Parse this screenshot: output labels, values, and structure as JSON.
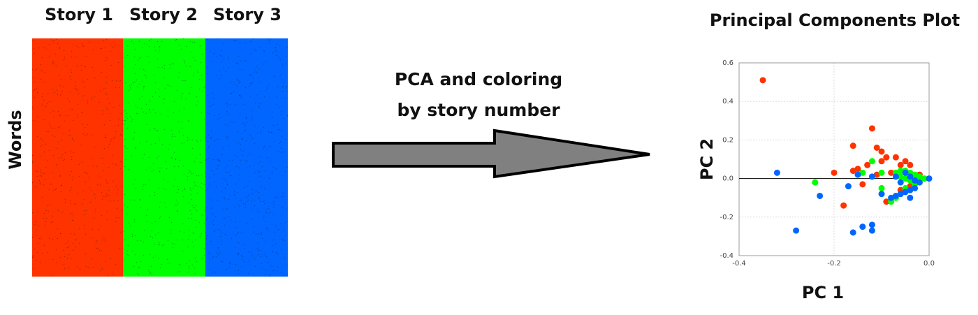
{
  "matrix": {
    "stories": [
      {
        "label": "Story 1",
        "color": "#ff3300"
      },
      {
        "label": "Story 2",
        "color": "#00ff00"
      },
      {
        "label": "Story 3",
        "color": "#0066ff"
      }
    ],
    "row_label": "Words"
  },
  "arrow": {
    "caption_line1": "PCA and coloring",
    "caption_line2": "by story number",
    "fill": "#808080"
  },
  "chart_data": {
    "type": "scatter",
    "title": "Principal Components Plot",
    "xlabel": "PC 1",
    "ylabel": "PC 2",
    "xlim": [
      -0.4,
      0.0
    ],
    "ylim": [
      -0.4,
      0.6
    ],
    "xticks": [
      "-0.4",
      "-0.2",
      "0.0"
    ],
    "yticks": [
      "-0.4",
      "-0.2",
      "0.0",
      "0.2",
      "0.4",
      "0.6"
    ],
    "grid": true,
    "series": [
      {
        "color": "#ff3300",
        "points": [
          [
            -0.35,
            0.51
          ],
          [
            -0.12,
            0.26
          ],
          [
            -0.16,
            0.17
          ],
          [
            -0.11,
            0.16
          ],
          [
            -0.1,
            0.14
          ],
          [
            -0.09,
            0.11
          ],
          [
            -0.07,
            0.11
          ],
          [
            -0.05,
            0.09
          ],
          [
            -0.04,
            0.07
          ],
          [
            -0.06,
            0.07
          ],
          [
            -0.1,
            0.09
          ],
          [
            -0.13,
            0.07
          ],
          [
            -0.15,
            0.05
          ],
          [
            -0.16,
            0.04
          ],
          [
            -0.11,
            0.02
          ],
          [
            -0.08,
            0.03
          ],
          [
            -0.2,
            0.03
          ],
          [
            -0.02,
            0.02
          ],
          [
            -0.03,
            -0.02
          ],
          [
            -0.06,
            -0.06
          ],
          [
            -0.18,
            -0.14
          ],
          [
            -0.09,
            -0.12
          ],
          [
            -0.14,
            -0.03
          ],
          [
            -0.04,
            -0.04
          ]
        ]
      },
      {
        "color": "#00ff00",
        "points": [
          [
            -0.24,
            -0.02
          ],
          [
            -0.12,
            0.09
          ],
          [
            -0.14,
            0.03
          ],
          [
            -0.1,
            0.03
          ],
          [
            -0.07,
            0.03
          ],
          [
            -0.06,
            0.04
          ],
          [
            -0.05,
            0.04
          ],
          [
            -0.04,
            0.03
          ],
          [
            -0.03,
            0.02
          ],
          [
            -0.02,
            0.01
          ],
          [
            -0.06,
            0.01
          ],
          [
            -0.05,
            0.0
          ],
          [
            -0.04,
            -0.01
          ],
          [
            -0.03,
            -0.03
          ],
          [
            -0.05,
            -0.05
          ],
          [
            -0.06,
            -0.08
          ],
          [
            -0.07,
            -0.1
          ],
          [
            -0.08,
            -0.12
          ],
          [
            -0.03,
            0.0
          ],
          [
            -0.01,
            0.0
          ],
          [
            -0.1,
            -0.05
          ],
          [
            -0.04,
            -0.06
          ]
        ]
      },
      {
        "color": "#0066ff",
        "points": [
          [
            -0.32,
            0.03
          ],
          [
            -0.28,
            -0.27
          ],
          [
            -0.23,
            -0.09
          ],
          [
            -0.17,
            -0.04
          ],
          [
            -0.16,
            -0.28
          ],
          [
            -0.14,
            -0.25
          ],
          [
            -0.12,
            -0.24
          ],
          [
            -0.12,
            -0.27
          ],
          [
            -0.15,
            0.02
          ],
          [
            -0.12,
            0.01
          ],
          [
            -0.1,
            -0.08
          ],
          [
            -0.08,
            -0.1
          ],
          [
            -0.07,
            -0.09
          ],
          [
            -0.06,
            -0.08
          ],
          [
            -0.05,
            -0.07
          ],
          [
            -0.04,
            -0.06
          ],
          [
            -0.04,
            -0.1
          ],
          [
            -0.05,
            0.03
          ],
          [
            -0.04,
            0.01
          ],
          [
            -0.03,
            -0.01
          ],
          [
            -0.02,
            -0.02
          ],
          [
            0.0,
            0.0
          ],
          [
            -0.06,
            -0.02
          ],
          [
            -0.03,
            -0.05
          ],
          [
            -0.07,
            0.01
          ]
        ]
      }
    ]
  }
}
